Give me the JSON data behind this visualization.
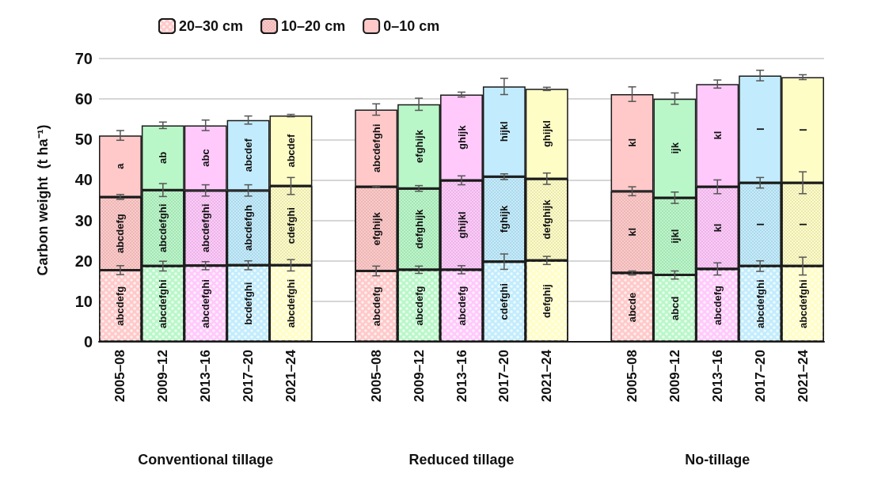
{
  "chart_data": {
    "type": "bar",
    "stacked": true,
    "ylabel": "Carbon weight  (t ha⁻¹)",
    "categories": [
      "2005–08",
      "2009–12",
      "2013–16",
      "2017–20",
      "2021–24",
      null,
      "2005–08",
      "2009–12",
      "2013–16",
      "2017–20",
      "2021–24",
      null,
      "2005–08",
      "2009–12",
      "2013–16",
      "2017–20",
      "2021–24"
    ],
    "series": [
      {
        "name": "20–30 cm",
        "color": "#ffc9c9",
        "colors": [
          "#ffc9c9",
          "#b9f7c8",
          "#ffc9fb",
          "#c2ecfd",
          "#fffdc6",
          null,
          "#ffc9c9",
          "#b9f7c8",
          "#ffc9fb",
          "#c2ecfd",
          "#fffdc6",
          null,
          "#ffc9c9",
          "#b9f7c8",
          "#ffc9fb",
          "#c2ecfd",
          "#fffdc6"
        ],
        "values": [
          17.7,
          18.7,
          18.8,
          18.9,
          18.9,
          null,
          17.5,
          17.8,
          17.8,
          19.8,
          20.1,
          null,
          17.0,
          16.5,
          18.0,
          18.7,
          18.7
        ],
        "errors": [
          1.1,
          1.2,
          1.0,
          1.1,
          1.4,
          null,
          1.2,
          0.9,
          1.0,
          1.9,
          1.0,
          null,
          0.5,
          1.0,
          1.5,
          1.3,
          2.2
        ],
        "value_labels": [
          "abcdefg",
          "abcdefghi",
          "abcdefghi",
          "bcdefghi",
          "abcdefghi",
          null,
          "abcdefg",
          "abcdefg",
          "abcdefg",
          "cdefghi",
          "defghij",
          null,
          "abcde",
          "abcd",
          "abcdefg",
          "abcdefghi",
          "abcdefghi"
        ]
      },
      {
        "name": "10–20 cm",
        "color": "#ffc9c9",
        "colors": [
          "#ffc9c9",
          "#b9f7c8",
          "#ffc9fb",
          "#c2ecfd",
          "#fffdc6",
          null,
          "#ffc9c9",
          "#b9f7c8",
          "#ffc9fb",
          "#c2ecfd",
          "#fffdc6",
          null,
          "#ffc9c9",
          "#b9f7c8",
          "#ffc9fb",
          "#c2ecfd",
          "#fffdc6"
        ],
        "values": [
          18.1,
          18.8,
          18.6,
          18.5,
          19.6,
          null,
          20.8,
          20.1,
          22.1,
          21.0,
          20.2,
          null,
          20.2,
          19.1,
          20.3,
          20.6,
          20.6
        ],
        "errors": [
          0.6,
          1.6,
          1.4,
          1.4,
          2.1,
          null,
          0.2,
          0.7,
          1.1,
          0.7,
          1.4,
          null,
          1.1,
          1.4,
          1.7,
          1.3,
          2.7
        ],
        "value_labels": [
          "abcdefg",
          "abcdefghi",
          "abcdefghi",
          "abcdefgh",
          "cdefghi",
          null,
          "efghijk",
          "defghijk",
          "ghijkl",
          "fghijk",
          "defghijk",
          null,
          "kl",
          "ijkl",
          "kl",
          "l",
          "l"
        ]
      },
      {
        "name": "0–10 cm",
        "color": "#ffc9c9",
        "colors": [
          "#ffc9c9",
          "#b9f7c8",
          "#ffc9fb",
          "#c2ecfd",
          "#fffdc6",
          null,
          "#ffc9c9",
          "#b9f7c8",
          "#ffc9fb",
          "#c2ecfd",
          "#fffdc6",
          null,
          "#ffc9c9",
          "#b9f7c8",
          "#ffc9fb",
          "#c2ecfd",
          "#fffdc6"
        ],
        "values": [
          15.2,
          16.0,
          16.1,
          17.4,
          17.4,
          null,
          19.1,
          20.8,
          21.2,
          22.3,
          22.2,
          null,
          24.0,
          24.5,
          25.4,
          26.5,
          26.1
        ],
        "errors": [
          1.2,
          0.8,
          1.3,
          1.0,
          0.3,
          null,
          1.4,
          1.5,
          0.6,
          2.0,
          0.4,
          null,
          1.8,
          1.4,
          1.0,
          1.3,
          0.6
        ],
        "value_labels": [
          "a",
          "ab",
          "abc",
          "abcdef",
          "abcdef",
          null,
          "abcdefghi",
          "efghijk",
          "ghijk",
          "hijkl",
          "ghijkl",
          null,
          "kl",
          "ijk",
          "kl",
          "l",
          "l"
        ]
      }
    ],
    "annotations": [
      "Conventional tillage",
      "Reduced tillage",
      "No-tillage"
    ],
    "ylim": [
      0,
      70
    ],
    "yticks": [
      0,
      10,
      20,
      30,
      40,
      50,
      60,
      70
    ],
    "grid": "y",
    "legend": "top left"
  }
}
